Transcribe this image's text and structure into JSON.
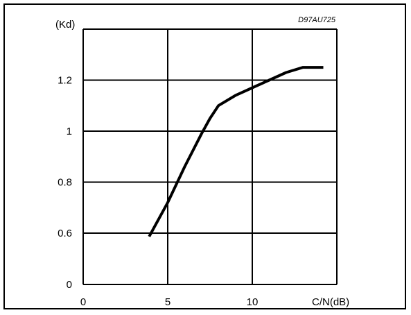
{
  "chart_data": {
    "type": "line",
    "code_label": "D97AU725",
    "ylabel": "(Kd)",
    "xlabel": "C/N(dB)",
    "x_ticks": [
      "0",
      "5",
      "10"
    ],
    "y_ticks": [
      "0",
      "0.6",
      "0.8",
      "1",
      "1.2"
    ],
    "ylim_broken_axis": true,
    "grid": true,
    "series": [
      {
        "x": [
          3.9,
          5.0,
          6.0,
          7.0,
          7.5,
          8.0,
          9.0,
          10.0,
          11.0,
          12.0,
          13.0,
          14.2
        ],
        "y": [
          0.56,
          0.72,
          0.86,
          0.99,
          1.05,
          1.1,
          1.14,
          1.17,
          1.2,
          1.23,
          1.25,
          1.25
        ]
      }
    ],
    "line_color": "#000000"
  }
}
